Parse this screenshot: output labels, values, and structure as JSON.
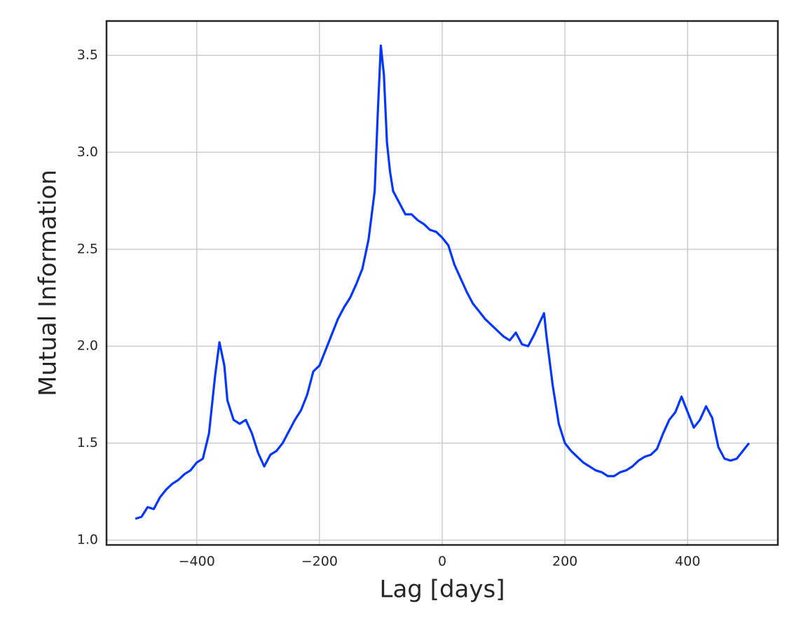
{
  "chart_data": {
    "type": "line",
    "x_label": "Lag [days]",
    "y_label": "Mutual Information",
    "x": [
      -500,
      -490,
      -480,
      -470,
      -460,
      -450,
      -440,
      -430,
      -420,
      -410,
      -400,
      -390,
      -380,
      -370,
      -363,
      -355,
      -350,
      -340,
      -330,
      -320,
      -310,
      -300,
      -290,
      -280,
      -270,
      -260,
      -250,
      -240,
      -230,
      -220,
      -210,
      -200,
      -190,
      -180,
      -170,
      -160,
      -150,
      -140,
      -130,
      -120,
      -110,
      -105,
      -100,
      -95,
      -90,
      -85,
      -80,
      -70,
      -60,
      -50,
      -40,
      -30,
      -20,
      -10,
      0,
      10,
      20,
      30,
      40,
      50,
      60,
      70,
      80,
      90,
      100,
      110,
      120,
      130,
      140,
      150,
      160,
      166,
      170,
      180,
      190,
      200,
      210,
      220,
      230,
      240,
      250,
      260,
      270,
      280,
      290,
      300,
      310,
      320,
      330,
      340,
      350,
      360,
      370,
      380,
      390,
      400,
      410,
      420,
      430,
      440,
      450,
      460,
      470,
      480,
      490,
      500
    ],
    "series": [
      {
        "name": "Mutual Information",
        "color": "#0336ff",
        "values": [
          1.11,
          1.12,
          1.17,
          1.16,
          1.22,
          1.26,
          1.29,
          1.31,
          1.34,
          1.36,
          1.4,
          1.42,
          1.55,
          1.85,
          2.02,
          1.9,
          1.72,
          1.62,
          1.6,
          1.62,
          1.55,
          1.45,
          1.38,
          1.44,
          1.46,
          1.5,
          1.56,
          1.62,
          1.67,
          1.75,
          1.87,
          1.9,
          1.98,
          2.06,
          2.14,
          2.2,
          2.25,
          2.32,
          2.4,
          2.55,
          2.8,
          3.2,
          3.55,
          3.4,
          3.05,
          2.9,
          2.8,
          2.74,
          2.68,
          2.68,
          2.65,
          2.63,
          2.6,
          2.59,
          2.56,
          2.52,
          2.42,
          2.35,
          2.28,
          2.22,
          2.18,
          2.14,
          2.11,
          2.08,
          2.05,
          2.03,
          2.07,
          2.01,
          2.0,
          2.06,
          2.13,
          2.17,
          2.05,
          1.8,
          1.6,
          1.5,
          1.46,
          1.43,
          1.4,
          1.38,
          1.36,
          1.35,
          1.33,
          1.33,
          1.35,
          1.36,
          1.38,
          1.41,
          1.43,
          1.44,
          1.47,
          1.55,
          1.62,
          1.66,
          1.74,
          1.66,
          1.58,
          1.62,
          1.69,
          1.63,
          1.48,
          1.42,
          1.41,
          1.42,
          1.46,
          1.5
        ]
      }
    ],
    "xlim": [
      -547,
      547
    ],
    "ylim": [
      0.975,
      3.677
    ],
    "xticks": [
      {
        "value": -400,
        "label": "−400"
      },
      {
        "value": -200,
        "label": "−200"
      },
      0,
      200,
      400
    ],
    "yticks": [
      {
        "value": 1.0,
        "label": "1.0"
      },
      1.5,
      {
        "value": 2.0,
        "label": "2.0"
      },
      2.5,
      {
        "value": 3.0,
        "label": "3.0"
      },
      3.5
    ],
    "grid": true
  }
}
